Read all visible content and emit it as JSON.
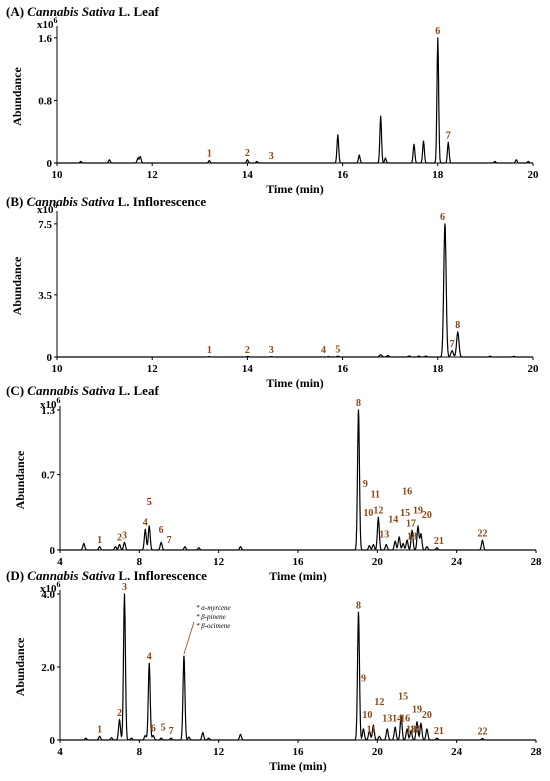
{
  "chart_data": [
    {
      "type": "line",
      "title_prefix": "(A) ",
      "title_italic": "Cannabis Sativa",
      "title_suffix": " L. Leaf",
      "xlabel": "Time (min)",
      "ylabel": "Abundance",
      "multiplier": "x10",
      "multiplier_exp": "6",
      "xlim": [
        10,
        20
      ],
      "ylim": [
        0,
        1.7
      ],
      "xticks": [
        10,
        12,
        14,
        16,
        18,
        20
      ],
      "yticks": [
        0,
        0.8,
        1.6
      ],
      "ytick_labels": [
        "0",
        "0.8",
        "1.6"
      ],
      "peaks": [
        [
          10.5,
          0.02
        ],
        [
          11.1,
          0.04
        ],
        [
          11.7,
          0.06
        ],
        [
          11.75,
          0.08
        ],
        [
          13.2,
          0.03
        ],
        [
          14.0,
          0.04
        ],
        [
          14.2,
          0.02
        ],
        [
          15.9,
          0.36
        ],
        [
          16.35,
          0.1
        ],
        [
          16.8,
          0.6
        ],
        [
          16.9,
          0.06
        ],
        [
          17.5,
          0.24
        ],
        [
          17.7,
          0.28
        ],
        [
          18.0,
          1.6
        ],
        [
          18.22,
          0.26
        ],
        [
          19.2,
          0.02
        ],
        [
          19.65,
          0.04
        ],
        [
          19.9,
          0.02
        ]
      ],
      "labels": [
        {
          "text": "1",
          "x": 13.2,
          "y": 0.03
        },
        {
          "text": "2",
          "x": 14.0,
          "y": 0.04
        },
        {
          "text": "3",
          "x": 14.5,
          "y": 0.0
        },
        {
          "text": "6",
          "x": 18.0,
          "y": 1.6
        },
        {
          "text": "7",
          "x": 18.22,
          "y": 0.26
        }
      ]
    },
    {
      "type": "line",
      "title_prefix": "(B) ",
      "title_italic": "Cannabis Sativa",
      "title_suffix": " L. Inflorescence",
      "xlabel": "Time (min)",
      "ylabel": "Abundance",
      "multiplier": "x10",
      "multiplier_exp": "6",
      "xlim": [
        10,
        20
      ],
      "ylim": [
        0,
        8
      ],
      "xticks": [
        10,
        12,
        14,
        16,
        18,
        20
      ],
      "yticks": [
        0,
        3.5,
        7.5
      ],
      "ytick_labels": [
        "0",
        "3.5",
        "7.5"
      ],
      "peaks": [
        [
          13.2,
          0.02
        ],
        [
          14.0,
          0.03
        ],
        [
          14.5,
          0.02
        ],
        [
          15.7,
          0.02
        ],
        [
          15.9,
          0.04
        ],
        [
          16.8,
          0.12
        ],
        [
          16.95,
          0.08
        ],
        [
          17.4,
          0.06
        ],
        [
          17.6,
          0.05
        ],
        [
          17.75,
          0.05
        ],
        [
          18.15,
          7.5
        ],
        [
          18.3,
          0.35
        ],
        [
          18.42,
          1.4
        ],
        [
          19.1,
          0.04
        ],
        [
          19.6,
          0.03
        ]
      ],
      "labels": [
        {
          "text": "1",
          "x": 13.2,
          "y": 0.0
        },
        {
          "text": "2",
          "x": 14.0,
          "y": 0.0
        },
        {
          "text": "3",
          "x": 14.5,
          "y": 0.0
        },
        {
          "text": "4",
          "x": 15.6,
          "y": 0.0
        },
        {
          "text": "5",
          "x": 15.9,
          "y": 0.04
        },
        {
          "text": "6",
          "x": 18.1,
          "y": 7.5
        },
        {
          "text": "7",
          "x": 18.3,
          "y": 0.35
        },
        {
          "text": "8",
          "x": 18.42,
          "y": 1.4
        }
      ]
    },
    {
      "type": "line",
      "title_prefix": "(C) ",
      "title_italic": "Cannabis Sativa",
      "title_suffix": " L. Leaf",
      "xlabel": "Time (min)",
      "ylabel": "Abundance",
      "multiplier": "x10",
      "multiplier_exp": "6",
      "xlim": [
        4,
        28
      ],
      "ylim": [
        0,
        1.3
      ],
      "xticks": [
        4,
        8,
        12,
        16,
        20,
        24,
        28
      ],
      "yticks": [
        0,
        0.7,
        1.3
      ],
      "ytick_labels": [
        "0",
        "0.7",
        "1.3"
      ],
      "peaks": [
        [
          5.2,
          0.06
        ],
        [
          6.0,
          0.03
        ],
        [
          6.8,
          0.03
        ],
        [
          7.0,
          0.05
        ],
        [
          7.25,
          0.07
        ],
        [
          8.3,
          0.19
        ],
        [
          8.5,
          0.22
        ],
        [
          9.1,
          0.07
        ],
        [
          10.3,
          0.03
        ],
        [
          11.0,
          0.02
        ],
        [
          13.1,
          0.03
        ],
        [
          19.05,
          1.3
        ],
        [
          19.6,
          0.04
        ],
        [
          19.8,
          0.05
        ],
        [
          20.05,
          0.3
        ],
        [
          20.45,
          0.05
        ],
        [
          20.9,
          0.08
        ],
        [
          21.1,
          0.12
        ],
        [
          21.3,
          0.06
        ],
        [
          21.5,
          0.09
        ],
        [
          21.75,
          0.18
        ],
        [
          22.05,
          0.22
        ],
        [
          22.2,
          0.15
        ],
        [
          22.5,
          0.03
        ],
        [
          23.0,
          0.02
        ],
        [
          25.3,
          0.09
        ]
      ],
      "labels": [
        {
          "text": "1",
          "x": 6.0,
          "y": 0.03
        },
        {
          "text": "2",
          "x": 7.0,
          "y": 0.05
        },
        {
          "text": "3",
          "x": 7.25,
          "y": 0.07
        },
        {
          "text": "4",
          "x": 8.3,
          "y": 0.19
        },
        {
          "text": "5",
          "x": 8.5,
          "y": 0.38
        },
        {
          "text": "6",
          "x": 9.1,
          "y": 0.12
        },
        {
          "text": "7",
          "x": 9.5,
          "y": 0.03
        },
        {
          "text": "8",
          "x": 19.05,
          "y": 1.3
        },
        {
          "text": "9",
          "x": 19.4,
          "y": 0.55
        },
        {
          "text": "10",
          "x": 19.55,
          "y": 0.28
        },
        {
          "text": "11",
          "x": 19.9,
          "y": 0.45
        },
        {
          "text": "12",
          "x": 20.05,
          "y": 0.3
        },
        {
          "text": "13",
          "x": 20.35,
          "y": 0.08
        },
        {
          "text": "14",
          "x": 20.8,
          "y": 0.22
        },
        {
          "text": "15",
          "x": 21.4,
          "y": 0.28
        },
        {
          "text": "16",
          "x": 21.5,
          "y": 0.48
        },
        {
          "text": "17",
          "x": 21.7,
          "y": 0.18
        },
        {
          "text": "18",
          "x": 21.75,
          "y": 0.06
        },
        {
          "text": "19",
          "x": 22.05,
          "y": 0.3
        },
        {
          "text": "20",
          "x": 22.5,
          "y": 0.26
        },
        {
          "text": "21",
          "x": 23.1,
          "y": 0.02
        },
        {
          "text": "22",
          "x": 25.3,
          "y": 0.09
        }
      ]
    },
    {
      "type": "line",
      "title_prefix": "(D) ",
      "title_italic": "Cannabis Sativa",
      "title_suffix": " L. Inflorescence",
      "xlabel": "Time (min)",
      "ylabel": "Abundance",
      "multiplier": "x10",
      "multiplier_exp": "6",
      "xlim": [
        4,
        28
      ],
      "ylim": [
        0,
        4.0
      ],
      "xticks": [
        4,
        8,
        12,
        16,
        20,
        24,
        28
      ],
      "yticks": [
        0,
        2.0,
        4.0
      ],
      "ytick_labels": [
        "0",
        "2.0",
        "4.0"
      ],
      "peaks": [
        [
          5.3,
          0.05
        ],
        [
          6.0,
          0.1
        ],
        [
          6.6,
          0.06
        ],
        [
          7.0,
          0.55
        ],
        [
          7.25,
          4.0
        ],
        [
          7.6,
          0.05
        ],
        [
          8.3,
          0.12
        ],
        [
          8.5,
          2.1
        ],
        [
          8.7,
          0.12
        ],
        [
          9.1,
          0.05
        ],
        [
          9.6,
          0.05
        ],
        [
          10.25,
          2.3
        ],
        [
          10.5,
          0.08
        ],
        [
          11.2,
          0.2
        ],
        [
          11.5,
          0.05
        ],
        [
          13.1,
          0.15
        ],
        [
          19.05,
          3.5
        ],
        [
          19.3,
          0.3
        ],
        [
          19.6,
          0.25
        ],
        [
          19.8,
          0.4
        ],
        [
          20.1,
          0.1
        ],
        [
          20.5,
          0.3
        ],
        [
          20.9,
          0.35
        ],
        [
          21.2,
          0.65
        ],
        [
          21.5,
          0.3
        ],
        [
          21.7,
          0.25
        ],
        [
          22.0,
          0.5
        ],
        [
          22.2,
          0.45
        ],
        [
          22.5,
          0.3
        ],
        [
          23.0,
          0.05
        ],
        [
          25.3,
          0.04
        ]
      ],
      "labels": [
        {
          "text": "1",
          "x": 6.0,
          "y": 0.1
        },
        {
          "text": "2",
          "x": 7.0,
          "y": 0.55
        },
        {
          "text": "3",
          "x": 7.25,
          "y": 4.0
        },
        {
          "text": "4",
          "x": 8.5,
          "y": 2.1
        },
        {
          "text": "5",
          "x": 9.2,
          "y": 0.15
        },
        {
          "text": "6",
          "x": 8.7,
          "y": 0.12
        },
        {
          "text": "7",
          "x": 9.6,
          "y": 0.05
        },
        {
          "text": "8",
          "x": 19.05,
          "y": 3.5
        },
        {
          "text": "9",
          "x": 19.3,
          "y": 1.5
        },
        {
          "text": "10",
          "x": 19.5,
          "y": 0.5
        },
        {
          "text": "11",
          "x": 19.7,
          "y": 0.1
        },
        {
          "text": "12",
          "x": 20.1,
          "y": 0.85
        },
        {
          "text": "13",
          "x": 20.5,
          "y": 0.4
        },
        {
          "text": "14",
          "x": 21.0,
          "y": 0.4
        },
        {
          "text": "15",
          "x": 21.3,
          "y": 1.0
        },
        {
          "text": "16",
          "x": 21.4,
          "y": 0.4
        },
        {
          "text": "17",
          "x": 21.9,
          "y": 0.1
        },
        {
          "text": "18",
          "x": 21.7,
          "y": 0.1
        },
        {
          "text": "19",
          "x": 22.0,
          "y": 0.65
        },
        {
          "text": "20",
          "x": 22.5,
          "y": 0.5
        },
        {
          "text": "21",
          "x": 23.1,
          "y": 0.05
        },
        {
          "text": "22",
          "x": 25.3,
          "y": 0.04
        }
      ],
      "annotation": [
        "* α-myrcene",
        "* β-pinene",
        "* β-ocimene"
      ]
    }
  ]
}
